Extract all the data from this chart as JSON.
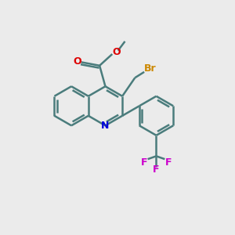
{
  "bg_color": "#ebebeb",
  "bond_color": "#4a7c7c",
  "bond_width": 1.8,
  "fig_size": [
    3.0,
    3.0
  ],
  "dpi": 100,
  "colors": {
    "N": "#0000dd",
    "O": "#dd0000",
    "Br": "#cc8800",
    "F": "#cc00cc",
    "C": "#4a7c7c"
  },
  "ring_r": 0.85
}
